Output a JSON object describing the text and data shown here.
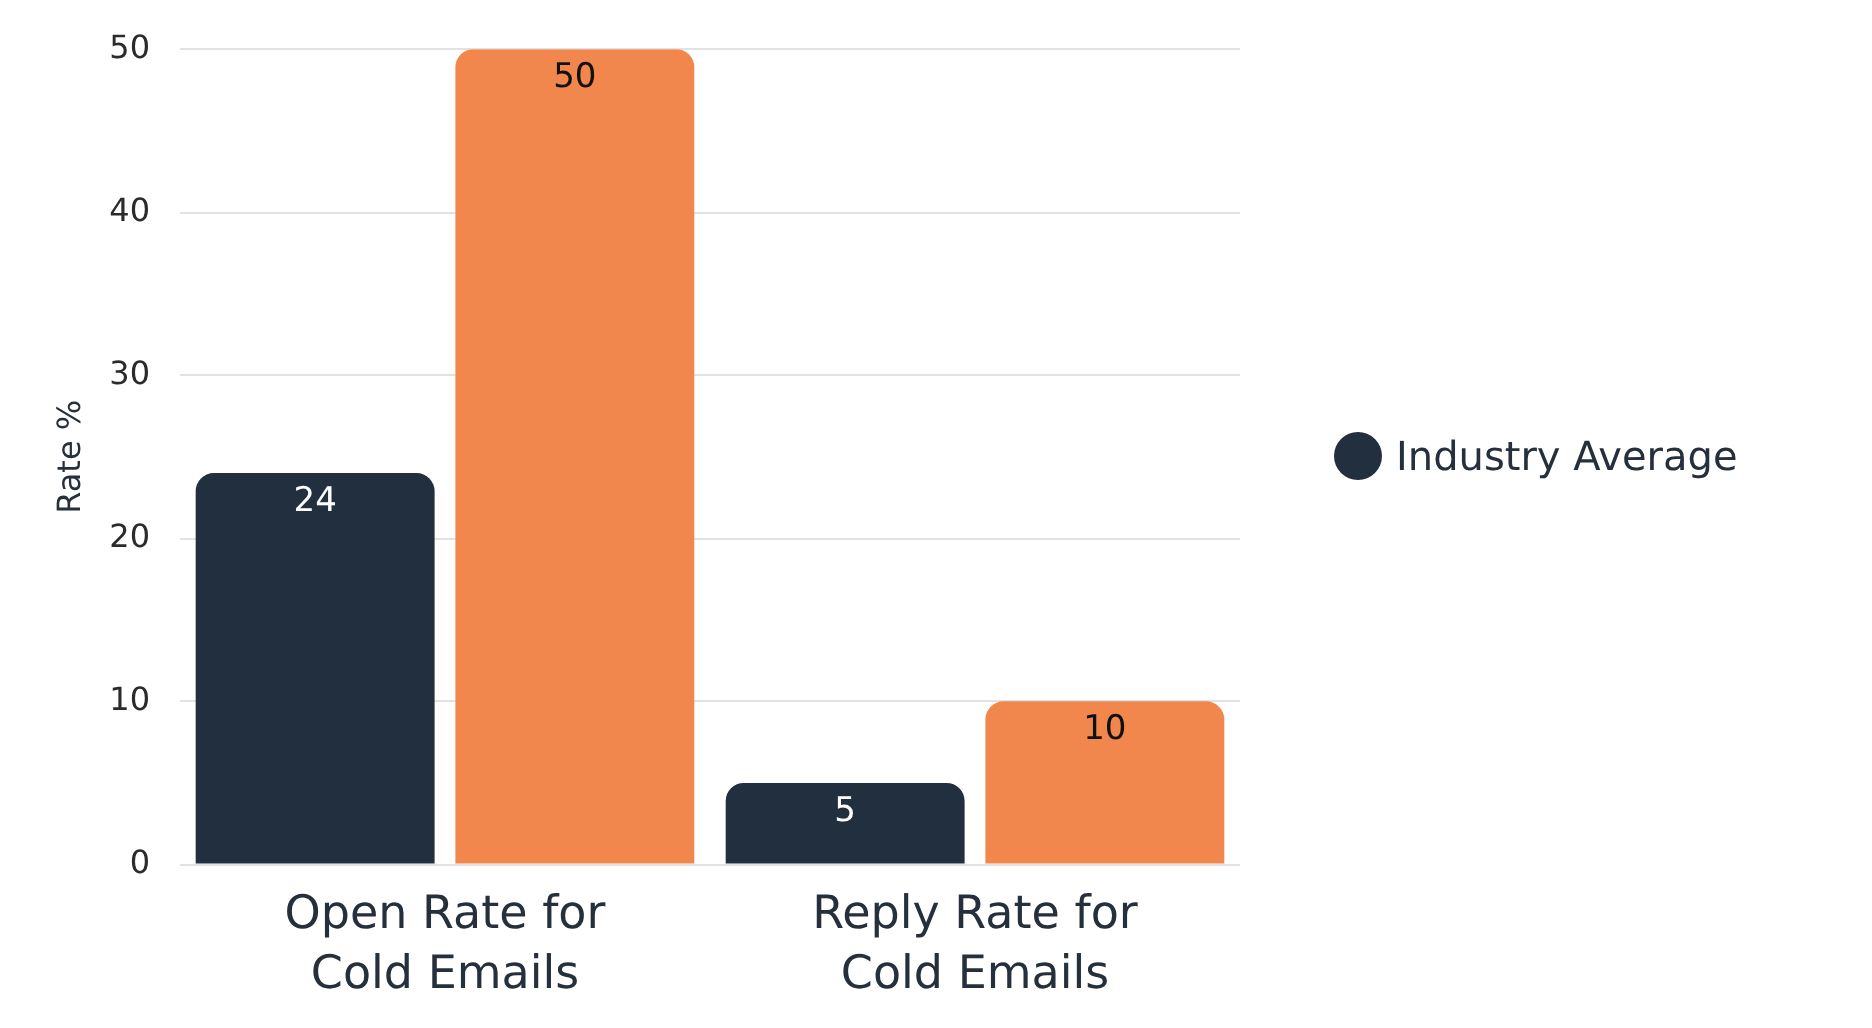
{
  "chart_data": {
    "type": "bar",
    "ylabel": "Rate %",
    "categories": [
      "Open Rate for Cold Emails",
      "Reply Rate for Cold Emails"
    ],
    "series": [
      {
        "name": "Industry Average",
        "color": "#222f3e",
        "values": [
          24,
          5
        ]
      },
      {
        "color": "#f2874d",
        "values": [
          50,
          10
        ]
      }
    ],
    "ylim": [
      0,
      50
    ],
    "yticks": [
      0,
      10,
      20,
      30,
      40,
      50
    ],
    "grid": "y",
    "legend": "right",
    "data_labels": true
  }
}
